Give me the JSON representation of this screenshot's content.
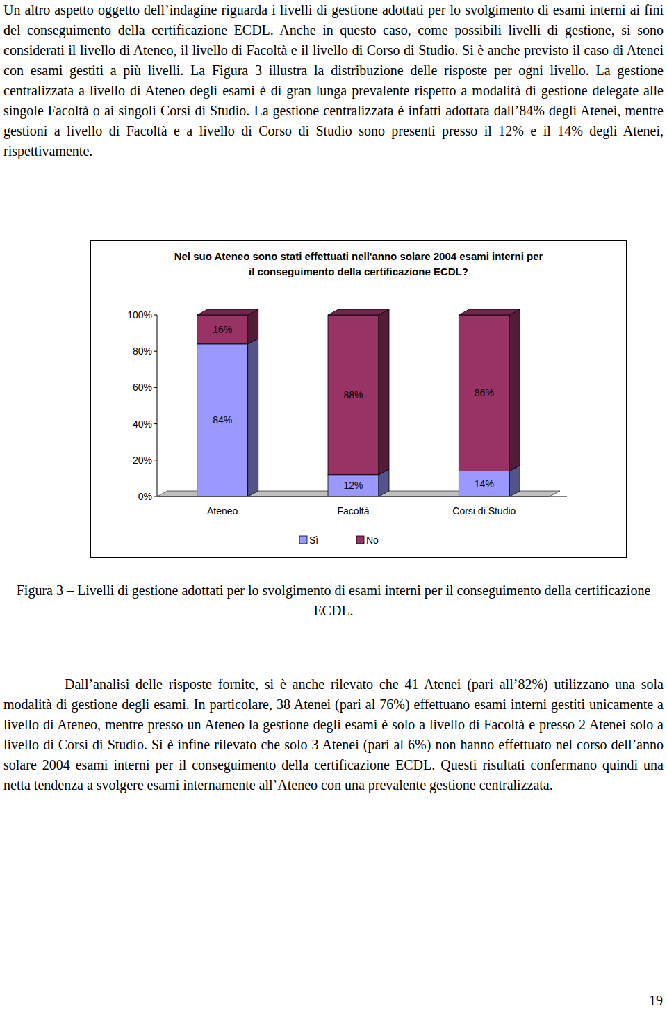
{
  "text_before": "Un altro aspetto oggetto dell’indagine riguarda i livelli di gestione adottati per lo svolgimento di esami interni ai fini del conseguimento della certificazione ECDL. Anche in questo caso, come possibili livelli di gestione, si sono considerati il livello di Ateneo, il livello di Facoltà e il livello di Corso di Studio. Si è anche previsto il caso di Atenei con esami gestiti a più livelli. La Figura 3 illustra la distribuzione delle risposte per ogni livello. La gestione centralizzata a livello di Ateneo degli esami è di gran lunga prevalente rispetto a modalità di gestione delegate alle singole Facoltà o ai singoli Corsi di Studio. La gestione centralizzata è infatti adottata dall’84% degli Atenei, mentre gestioni a livello di Facoltà e a livello di Corso di Studio sono presenti presso il 12% e il 14% degli Atenei, rispettivamente.",
  "chart_data": {
    "type": "bar",
    "title": "Nel suo Ateneo sono stati effettuati nell'anno solare 2004 esami interni per il conseguimento della certificazione ECDL?",
    "categories": [
      "Ateneo",
      "Facoltà",
      "Corsi di Studio"
    ],
    "series": [
      {
        "name": "Sì",
        "color": "#9999ff",
        "values": [
          84,
          12,
          14
        ],
        "value_labels": [
          "84%",
          "12%",
          "14%"
        ]
      },
      {
        "name": "No",
        "color": "#993366",
        "values": [
          16,
          88,
          86
        ],
        "value_labels": [
          "16%",
          "88%",
          "86%"
        ]
      }
    ],
    "ylim": [
      0,
      100
    ],
    "yticks": [
      {
        "value": 0,
        "label": "0%"
      },
      {
        "value": 20,
        "label": "20%"
      },
      {
        "value": 40,
        "label": "40%"
      },
      {
        "value": 60,
        "label": "60%"
      },
      {
        "value": 80,
        "label": "80%"
      },
      {
        "value": 100,
        "label": "100%"
      }
    ],
    "stacked": true,
    "data_labels": true,
    "legend": "bottom",
    "grid": false
  },
  "caption": "Figura 3 – Livelli di gestione adottati per lo svolgimento di esami interni per il conseguimento della certificazione ECDL.",
  "text_after": "Dall’analisi delle risposte fornite, si è anche rilevato che 41 Atenei (pari all’82%) utilizzano una sola modalità di gestione degli esami. In particolare, 38 Atenei (pari al 76%) effettuano esami interni gestiti unicamente a livello di Ateneo, mentre presso un Ateneo la gestione degli esami è solo a livello di Facoltà e presso 2 Atenei solo a livello di Corsi di Studio. Si è infine rilevato che solo 3 Atenei (pari al 6%) non hanno effettuato nel corso dell’anno solare 2004 esami interni per il conseguimento della certificazione ECDL. Questi risultati confermano quindi una netta tendenza a svolgere esami internamente all’Ateneo con una prevalente gestione centralizzata.",
  "page_number": "19"
}
